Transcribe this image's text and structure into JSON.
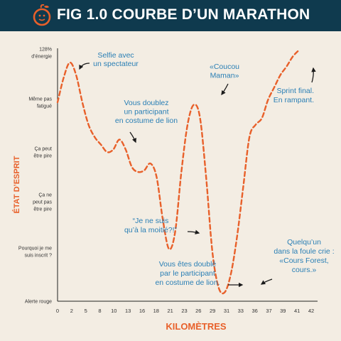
{
  "header": {
    "title": "FIG 1.0 COURBE D’UN MARATHON"
  },
  "colors": {
    "header_bg": "#0f3a4e",
    "background": "#f3ede3",
    "curve": "#e8602a",
    "annotation": "#2a7fb5",
    "axis_title": "#e8602a"
  },
  "chart_data": {
    "type": "line",
    "title": "FIG 1.0 COURBE D’UN MARATHON",
    "xlabel": "KILOMÈTRES",
    "ylabel": "ÉTAT D’ESPRIT",
    "x_ticks": [
      "0",
      "2",
      "5",
      "8",
      "10",
      "13",
      "16",
      "18",
      "21",
      "23",
      "26",
      "29",
      "31",
      "33",
      "36",
      "37",
      "39",
      "41",
      "42"
    ],
    "y_categories": [
      "Alerte rouge",
      "Pourquoi je me suis inscrit ?",
      "Ça ne peut pas être pire",
      "Ça peut être pire",
      "Même pas fatigué",
      "128% d’énergie"
    ],
    "y_tick_lines": [
      [
        "Alerte rouge"
      ],
      [
        "Pourquoi je me",
        "suis inscrit ?"
      ],
      [
        "Ça ne",
        "peut pas",
        "être pire"
      ],
      [
        "Ça peut",
        "être pire"
      ],
      [
        "Même pas",
        "fatigué"
      ],
      [
        "128%",
        "d’énergie"
      ]
    ],
    "xlim": [
      0,
      42
    ],
    "ylim": [
      0,
      5
    ],
    "grid": false,
    "series": [
      {
        "color": "#e8602a",
        "style": "dashed",
        "points": [
          [
            0,
            4.0
          ],
          [
            1,
            4.5
          ],
          [
            2,
            4.8
          ],
          [
            3,
            4.55
          ],
          [
            4,
            4.0
          ],
          [
            5,
            3.55
          ],
          [
            6,
            3.3
          ],
          [
            7,
            3.15
          ],
          [
            8,
            3.0
          ],
          [
            9,
            3.05
          ],
          [
            10,
            3.25
          ],
          [
            11,
            3.05
          ],
          [
            12,
            2.7
          ],
          [
            13,
            2.6
          ],
          [
            14,
            2.63
          ],
          [
            15,
            2.77
          ],
          [
            16,
            2.5
          ],
          [
            17,
            1.65
          ],
          [
            18,
            1.05
          ],
          [
            19,
            1.4
          ],
          [
            20,
            2.6
          ],
          [
            21,
            3.55
          ],
          [
            22,
            3.95
          ],
          [
            23,
            3.7
          ],
          [
            24,
            2.5
          ],
          [
            25,
            1.0
          ],
          [
            26,
            0.28
          ],
          [
            27,
            0.18
          ],
          [
            28,
            0.55
          ],
          [
            29,
            1.3
          ],
          [
            30,
            2.3
          ],
          [
            31,
            3.3
          ],
          [
            32,
            3.55
          ],
          [
            33,
            3.68
          ],
          [
            34,
            4.05
          ],
          [
            35,
            4.3
          ],
          [
            36,
            4.55
          ],
          [
            37,
            4.72
          ],
          [
            38,
            4.92
          ],
          [
            39,
            5.05
          ]
        ]
      }
    ],
    "annotations": [
      {
        "id": "selfie",
        "lines": [
          "Selfie avec",
          "un spectateur"
        ]
      },
      {
        "id": "lion",
        "lines": [
          "Vous doublez",
          "un participant",
          "en costume de lion"
        ]
      },
      {
        "id": "maman",
        "lines": [
          "«Coucou",
          "Maman»"
        ]
      },
      {
        "id": "sprint",
        "lines": [
          "Sprint final.",
          "En rampant."
        ]
      },
      {
        "id": "moitie",
        "lines": [
          "“Je ne suis",
          "qu’à la moitié?!”"
        ]
      },
      {
        "id": "double",
        "lines": [
          "Vous êtes doublé",
          "par le participant",
          "en costume de lion."
        ]
      },
      {
        "id": "forest",
        "lines": [
          "Quelqu’un",
          "dans la foule crie :",
          "«Cours Forest,",
          "cours.»"
        ]
      }
    ]
  }
}
